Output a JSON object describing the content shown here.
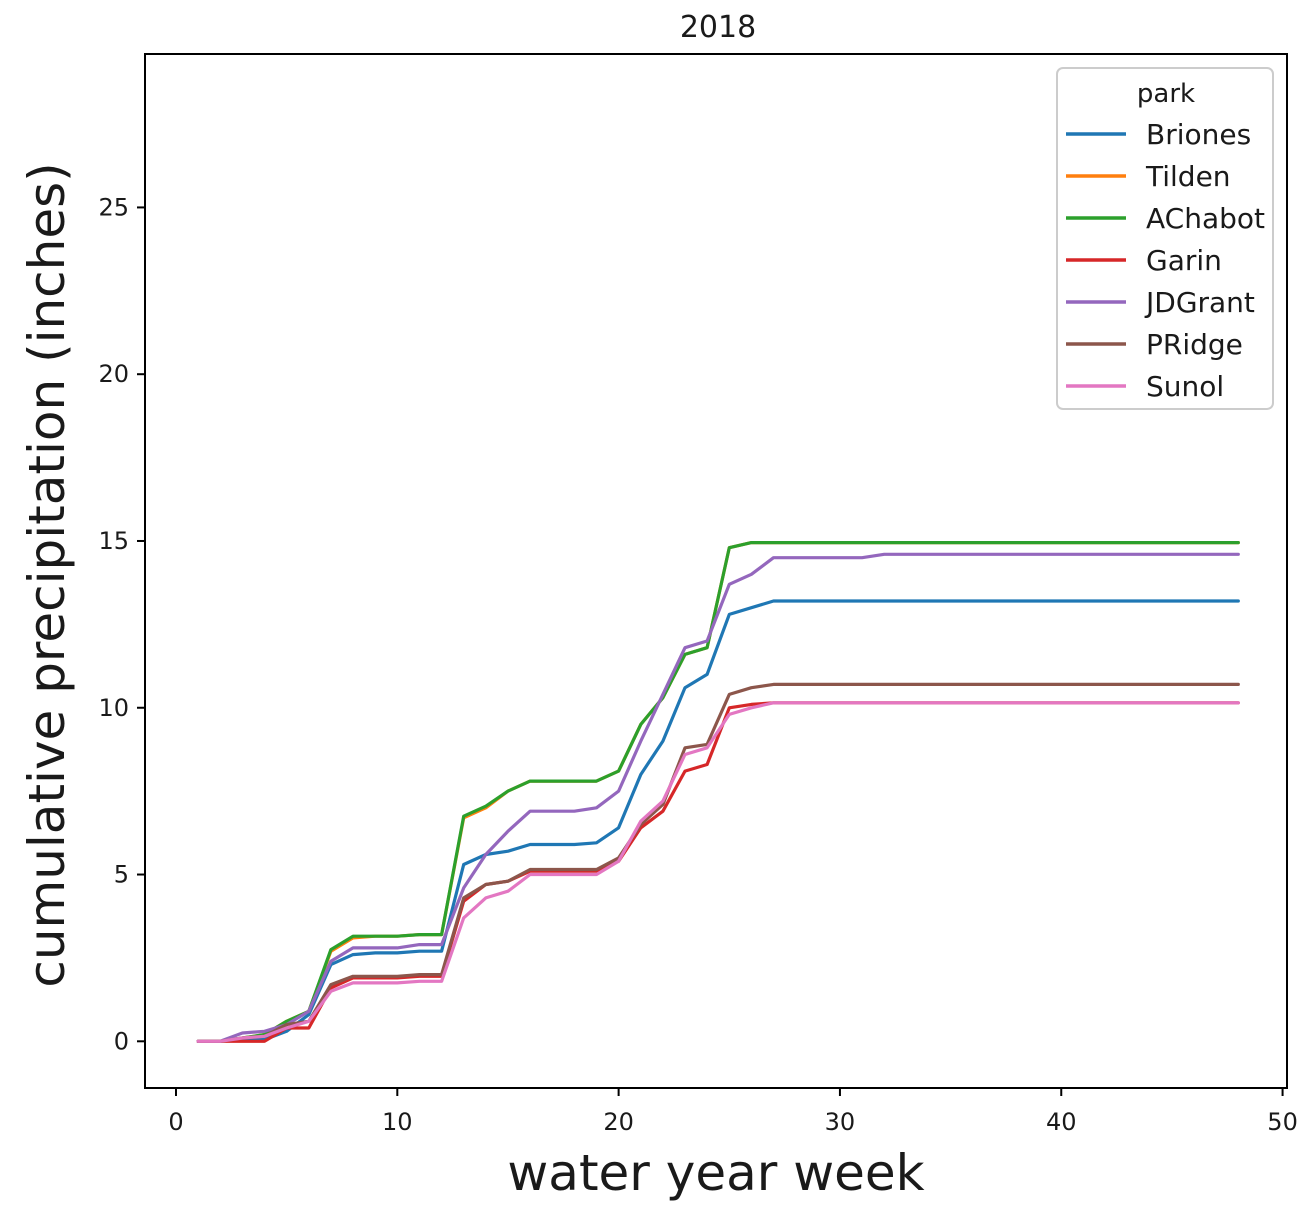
{
  "chart_data": {
    "type": "line",
    "title": "2018",
    "xlabel": "water year week",
    "ylabel": "cumulative precipitation (inches)",
    "xlim": [
      -1.4,
      50.2
    ],
    "ylim": [
      -1.4,
      29.6
    ],
    "xticks": [
      0,
      10,
      20,
      30,
      40,
      50
    ],
    "yticks": [
      0,
      5,
      10,
      15,
      20,
      25
    ],
    "grid": false,
    "legend": {
      "title": "park",
      "placement": "top-right"
    },
    "x": [
      1,
      2,
      3,
      4,
      5,
      6,
      7,
      8,
      9,
      10,
      11,
      12,
      13,
      14,
      15,
      16,
      17,
      18,
      19,
      20,
      21,
      22,
      23,
      24,
      25,
      26,
      27,
      28,
      29,
      30,
      31,
      32,
      33,
      34,
      35,
      36,
      37,
      38,
      39,
      40,
      41,
      42,
      43,
      44,
      45,
      46,
      47,
      48
    ],
    "series": [
      {
        "name": "Briones",
        "color": "#1f77b4",
        "values": [
          0,
          0,
          0.05,
          0.05,
          0.3,
          0.8,
          2.3,
          2.6,
          2.65,
          2.65,
          2.7,
          2.7,
          5.3,
          5.6,
          5.7,
          5.9,
          5.9,
          5.9,
          5.95,
          6.4,
          8.0,
          9.0,
          10.6,
          11.0,
          12.8,
          13.0,
          13.2,
          13.2,
          13.2,
          13.2,
          13.2,
          13.2,
          13.2,
          13.2,
          13.2,
          13.2,
          13.2,
          13.2,
          13.2,
          13.2,
          13.2,
          13.2,
          13.2,
          13.2,
          13.2,
          13.2,
          13.2,
          13.2
        ]
      },
      {
        "name": "Tilden",
        "color": "#ff7f0e",
        "values": [
          0,
          0,
          0.1,
          0.2,
          0.6,
          0.9,
          2.7,
          3.1,
          3.15,
          3.15,
          3.2,
          3.2,
          6.7,
          7.0,
          7.5,
          7.8,
          7.8,
          7.8,
          7.8,
          8.1,
          9.5,
          10.3,
          11.6,
          11.8,
          14.8,
          14.95,
          14.95,
          14.95,
          14.95,
          14.95,
          14.95,
          14.95,
          14.95,
          14.95,
          14.95,
          14.95,
          14.95,
          14.95,
          14.95,
          14.95,
          14.95,
          14.95,
          14.95,
          14.95,
          14.95,
          14.95,
          14.95,
          14.95
        ]
      },
      {
        "name": "AChabot",
        "color": "#2ca02c",
        "values": [
          0,
          0,
          0.1,
          0.2,
          0.6,
          0.9,
          2.75,
          3.15,
          3.15,
          3.15,
          3.2,
          3.2,
          6.75,
          7.05,
          7.5,
          7.8,
          7.8,
          7.8,
          7.8,
          8.1,
          9.5,
          10.3,
          11.6,
          11.8,
          14.8,
          14.95,
          14.95,
          14.95,
          14.95,
          14.95,
          14.95,
          14.95,
          14.95,
          14.95,
          14.95,
          14.95,
          14.95,
          14.95,
          14.95,
          14.95,
          14.95,
          14.95,
          14.95,
          14.95,
          14.95,
          14.95,
          14.95,
          14.95
        ]
      },
      {
        "name": "Garin",
        "color": "#d62728",
        "values": [
          0,
          0,
          0,
          0,
          0.4,
          0.4,
          1.6,
          1.9,
          1.9,
          1.9,
          1.95,
          1.95,
          4.2,
          4.7,
          4.8,
          5.1,
          5.1,
          5.1,
          5.1,
          5.4,
          6.4,
          6.9,
          8.1,
          8.3,
          10.0,
          10.1,
          10.15,
          10.15,
          10.15,
          10.15,
          10.15,
          10.15,
          10.15,
          10.15,
          10.15,
          10.15,
          10.15,
          10.15,
          10.15,
          10.15,
          10.15,
          10.15,
          10.15,
          10.15,
          10.15,
          10.15,
          10.15,
          10.15
        ]
      },
      {
        "name": "JDGrant",
        "color": "#9467bd",
        "values": [
          0,
          0,
          0.25,
          0.3,
          0.5,
          0.9,
          2.4,
          2.8,
          2.8,
          2.8,
          2.9,
          2.9,
          4.6,
          5.6,
          6.3,
          6.9,
          6.9,
          6.9,
          7.0,
          7.5,
          9.0,
          10.4,
          11.8,
          12.0,
          13.7,
          14.0,
          14.5,
          14.5,
          14.5,
          14.5,
          14.5,
          14.6,
          14.6,
          14.6,
          14.6,
          14.6,
          14.6,
          14.6,
          14.6,
          14.6,
          14.6,
          14.6,
          14.6,
          14.6,
          14.6,
          14.6,
          14.6,
          14.6
        ]
      },
      {
        "name": "PRidge",
        "color": "#8c564b",
        "values": [
          0,
          0,
          0.1,
          0.15,
          0.5,
          0.6,
          1.7,
          1.95,
          1.95,
          1.95,
          2.0,
          2.0,
          4.3,
          4.7,
          4.8,
          5.15,
          5.15,
          5.15,
          5.15,
          5.5,
          6.5,
          7.1,
          8.8,
          8.9,
          10.4,
          10.6,
          10.7,
          10.7,
          10.7,
          10.7,
          10.7,
          10.7,
          10.7,
          10.7,
          10.7,
          10.7,
          10.7,
          10.7,
          10.7,
          10.7,
          10.7,
          10.7,
          10.7,
          10.7,
          10.7,
          10.7,
          10.7,
          10.7
        ]
      },
      {
        "name": "Sunol",
        "color": "#e377c2",
        "values": [
          0,
          0,
          0.1,
          0.15,
          0.4,
          0.6,
          1.5,
          1.75,
          1.75,
          1.75,
          1.8,
          1.8,
          3.7,
          4.3,
          4.5,
          5.0,
          5.0,
          5.0,
          5.0,
          5.4,
          6.6,
          7.2,
          8.6,
          8.8,
          9.8,
          10.0,
          10.15,
          10.15,
          10.15,
          10.15,
          10.15,
          10.15,
          10.15,
          10.15,
          10.15,
          10.15,
          10.15,
          10.15,
          10.15,
          10.15,
          10.15,
          10.15,
          10.15,
          10.15,
          10.15,
          10.15,
          10.15,
          10.15
        ]
      }
    ]
  }
}
